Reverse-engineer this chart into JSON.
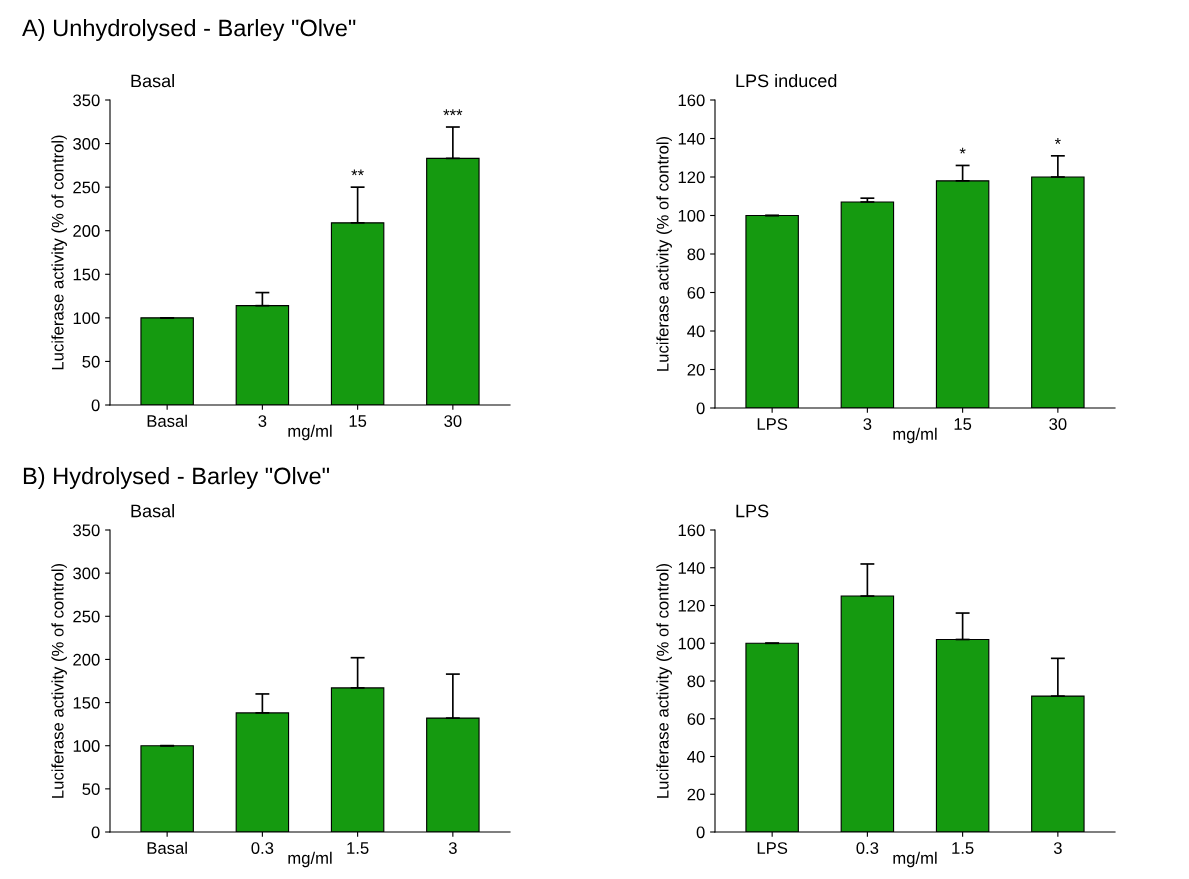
{
  "chart_data": [
    {
      "type": "bar",
      "title": "Basal",
      "annotations": [
        "A) Unhydrolysed - Barley \"Olve\"",
        {
          "text": "**",
          "x": "15",
          "y": 250
        },
        {
          "text": "***",
          "x": "30",
          "y": 319
        }
      ],
      "xlabel": "mg/ml",
      "ylabel": "Luciferase activity (% of control)",
      "categories": [
        "Basal",
        "3",
        "15",
        "30"
      ],
      "values": [
        100,
        114,
        209,
        283
      ],
      "errors": [
        null,
        15,
        41,
        36
      ],
      "color": "#159a10",
      "ylim": [
        0,
        350
      ],
      "yticks": [
        0,
        50,
        100,
        150,
        200,
        250,
        300,
        350
      ],
      "grid": false
    },
    {
      "type": "bar",
      "title": "LPS induced",
      "annotations": [
        {
          "text": "*",
          "x": "15",
          "y": 126
        },
        {
          "text": "*",
          "x": "30",
          "y": 131
        }
      ],
      "xlabel": "mg/ml",
      "ylabel": "Luciferase activity (% of control)",
      "categories": [
        "LPS",
        "3",
        "15",
        "30"
      ],
      "values": [
        100,
        107,
        118,
        120
      ],
      "errors": [
        null,
        2,
        8,
        11
      ],
      "color": "#159a10",
      "ylim": [
        0,
        160
      ],
      "yticks": [
        0,
        20,
        40,
        60,
        80,
        100,
        120,
        140,
        160
      ],
      "grid": false
    },
    {
      "type": "bar",
      "title": "Basal",
      "annotations": [
        "B) Hydrolysed - Barley \"Olve\""
      ],
      "xlabel": "mg/ml",
      "ylabel": "Luciferase activity (% of control)",
      "categories": [
        "Basal",
        "0.3",
        "1.5",
        "3"
      ],
      "values": [
        100,
        138,
        167,
        132
      ],
      "errors": [
        null,
        22,
        35,
        51
      ],
      "color": "#159a10",
      "ylim": [
        0,
        350
      ],
      "yticks": [
        0,
        50,
        100,
        150,
        200,
        250,
        300,
        350
      ],
      "grid": false
    },
    {
      "type": "bar",
      "title": "LPS",
      "xlabel": "mg/ml",
      "ylabel": "Luciferase activity (% of control)",
      "categories": [
        "LPS",
        "0.3",
        "1.5",
        "3"
      ],
      "values": [
        100,
        125,
        102,
        72
      ],
      "errors": [
        null,
        17,
        14,
        20
      ],
      "color": "#159a10",
      "ylim": [
        0,
        160
      ],
      "yticks": [
        0,
        20,
        40,
        60,
        80,
        100,
        120,
        140,
        160
      ],
      "grid": false
    }
  ]
}
